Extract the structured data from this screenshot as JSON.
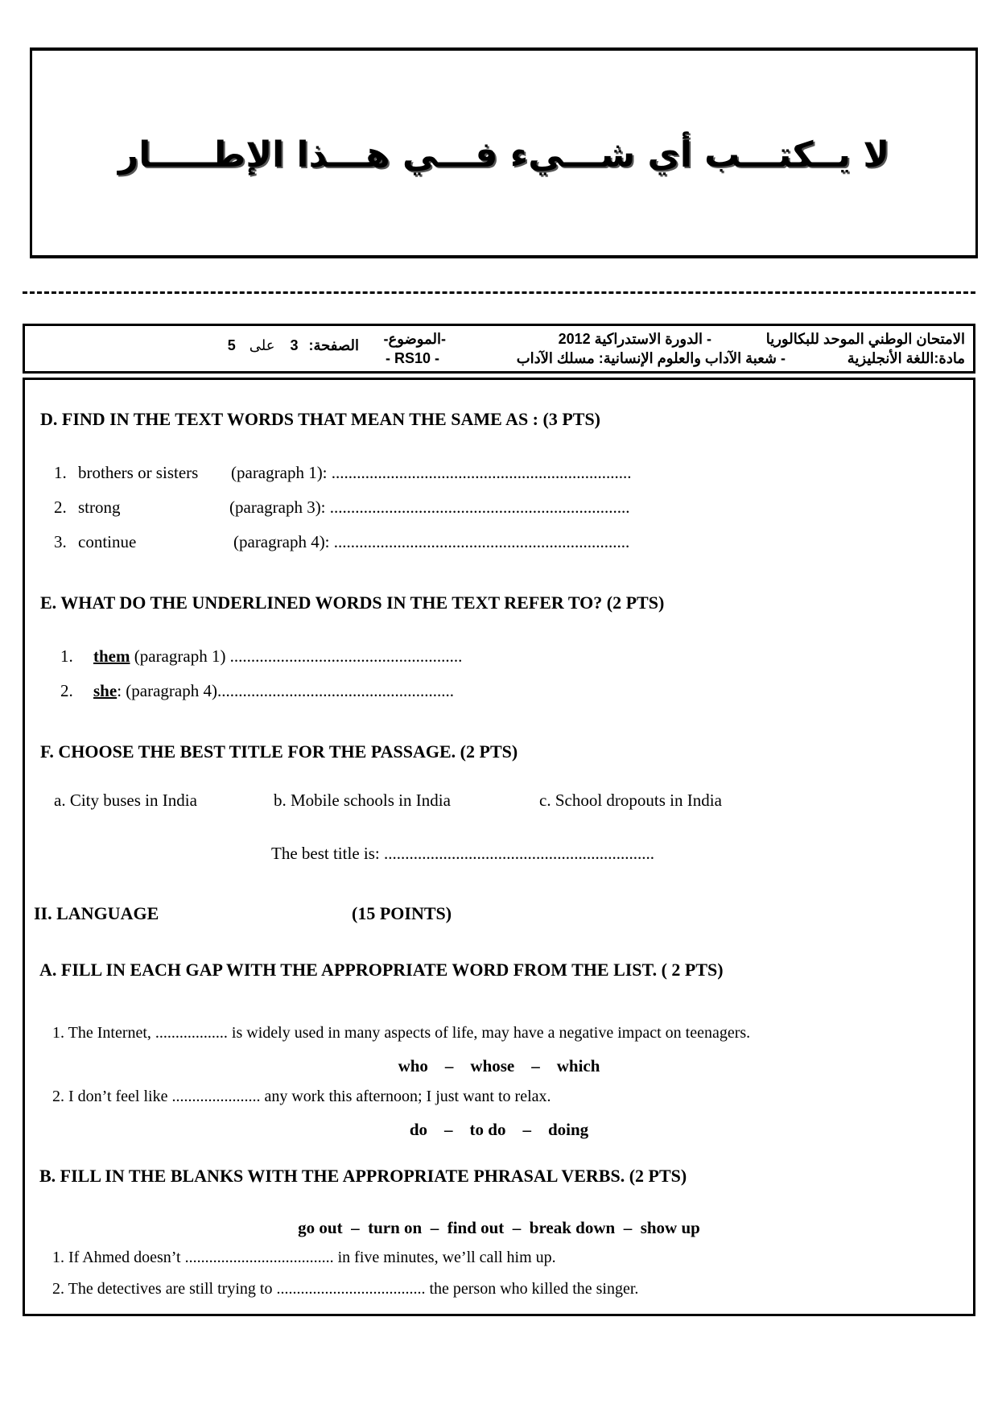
{
  "top_notice": "لا يــكتـــب أي شـــيء فـــي هـــذا الإطـــــار",
  "header": {
    "exam": "الامتحان الوطني الموحد للبكالوريا",
    "session": "- الدورة الاستدراكية 2012",
    "subject_label": "-الموضوع-",
    "subject_code": "- RS10 -",
    "course": "مادة:اللغة الأنجليزية",
    "branch": "- شعبة الآداب والعلوم الإنسانية: مسلك الآداب",
    "page_label": "الصفحة:",
    "page_current": "3",
    "page_of": "على",
    "page_total": "5"
  },
  "section_d": {
    "heading": "D.  FIND IN THE TEXT WORDS THAT MEAN THE SAME AS :   (3 PTS)",
    "items": [
      {
        "num": "1.",
        "word": "brothers or sisters",
        "ref": "(paragraph 1): ......................................................................."
      },
      {
        "num": "2.",
        "word": "strong",
        "ref": "(paragraph 3):  ......................................................................."
      },
      {
        "num": "3.",
        "word": "continue",
        "ref": "(paragraph 4): ......................................................................"
      }
    ]
  },
  "section_e": {
    "heading": "E.  WHAT DO THE UNDERLINED WORDS IN THE TEXT REFER TO?    (2 PTS)",
    "items": [
      {
        "num": "1.",
        "word": "them",
        "ref": " (paragraph 1) ......................................................."
      },
      {
        "num": "2.",
        "word": "she",
        "ref": ":   (paragraph 4)........................................................"
      }
    ]
  },
  "section_f": {
    "heading": "F. CHOOSE THE BEST TITLE FOR THE PASSAGE.  (2 PTS)",
    "options": [
      "a. City  buses in India",
      "b. Mobile schools in India",
      "c. School dropouts in India"
    ],
    "answer_line": "The best title is: ................................................................"
  },
  "language": {
    "heading": "II. LANGUAGE",
    "points": "(15 POINTS)"
  },
  "section_a": {
    "heading": "A. FILL IN EACH GAP WITH THE APPROPRIATE WORD FROM THE LIST. ( 2 PTS)",
    "item1": "1. The Internet,  .................. is widely used in many aspects of life,  may have a negative impact on teenagers.",
    "choices1": "who    –    whose    –    which",
    "item2": "2. I don’t feel like ...................... any work this afternoon; I just want to relax.",
    "choices2": "do    –    to do    –    doing"
  },
  "section_b": {
    "heading": "B. FILL IN THE BLANKS WITH THE APPROPRIATE PHRASAL VERBS.    (2 PTS)",
    "verbs": "go out  –  turn on  –  find out  –  break down  –  show up",
    "item1": "1. If Ahmed doesn’t .....................................  in five minutes, we’ll call him up.",
    "item2": "2. The detectives are still trying to ..................................... the person who killed the singer."
  }
}
